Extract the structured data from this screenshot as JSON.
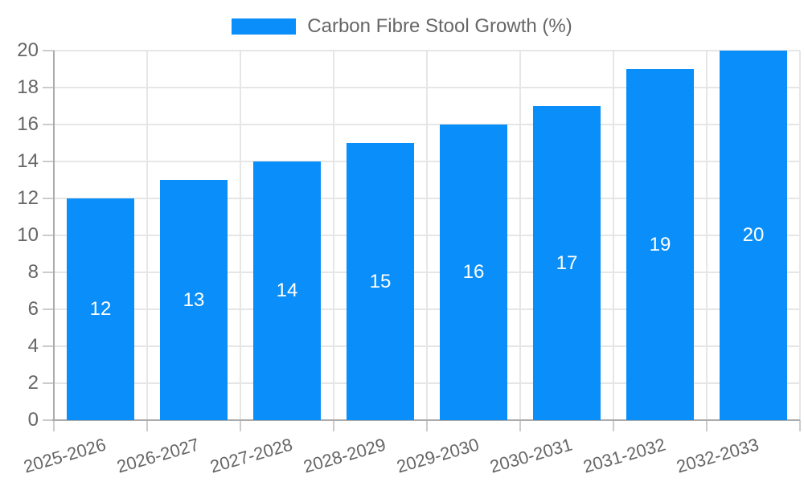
{
  "chart_data": {
    "type": "bar",
    "title": "Carbon Fibre Stool Growth (%)",
    "legend_position": "top-center",
    "categories": [
      "2025-2026",
      "2026-2027",
      "2027-2028",
      "2028-2029",
      "2029-2030",
      "2030-2031",
      "2031-2032",
      "2032-2033"
    ],
    "values": [
      12,
      13,
      14,
      15,
      16,
      17,
      19,
      20
    ],
    "bar_value_labels": [
      "12",
      "13",
      "14",
      "15",
      "16",
      "17",
      "19",
      "20"
    ],
    "xlabel": "",
    "ylabel": "",
    "ylim": [
      0,
      20
    ],
    "yticks": [
      0,
      2,
      4,
      6,
      8,
      10,
      12,
      14,
      16,
      18,
      20
    ],
    "grid": true,
    "x_tick_rotation_deg": -16,
    "colors": {
      "bar": "#0a8ef9",
      "bar_label": "#ffffff",
      "axis_text": "#666666",
      "gridline": "#e6e6e6",
      "axis_line": "#ababab",
      "tick_mark": "#cccccc",
      "background": "#ffffff"
    }
  }
}
